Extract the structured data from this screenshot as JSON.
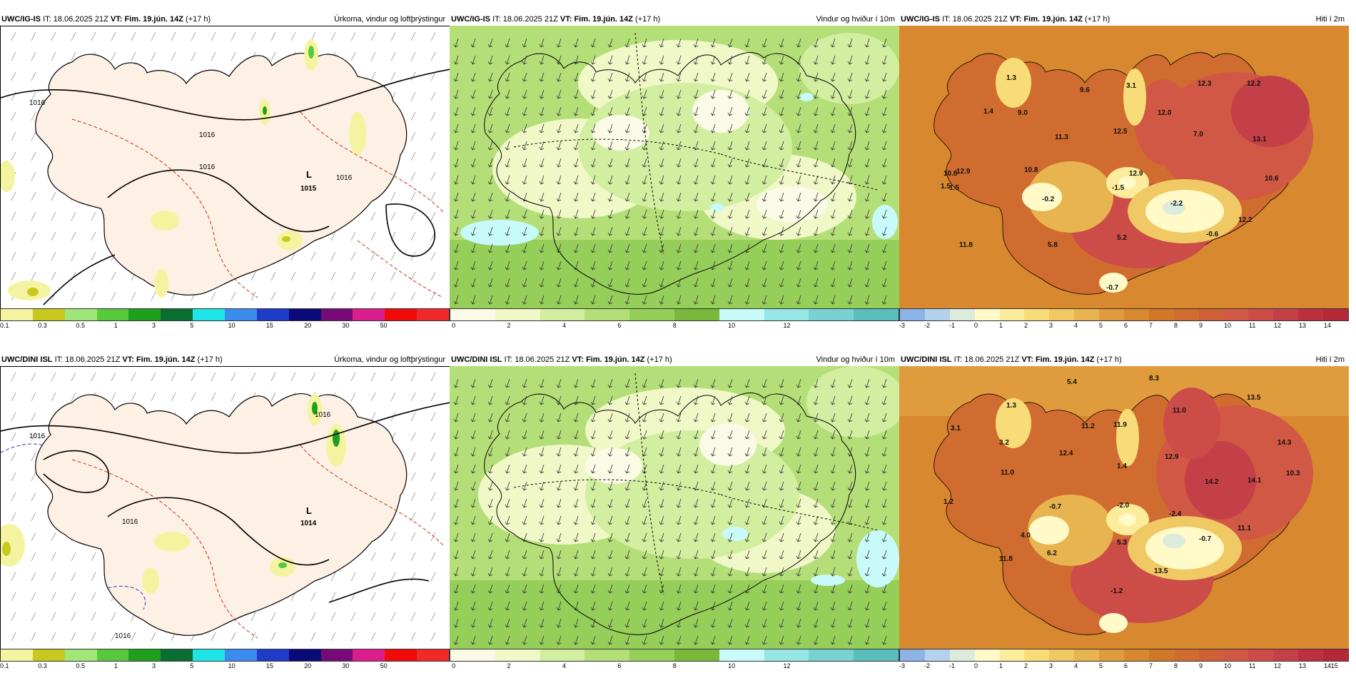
{
  "rows": [
    {
      "model": "UWC/IG-IS",
      "it_label": "IT:",
      "it_value": "18.06.2025 21Z",
      "vt_label": "VT:",
      "vt_value": "Fim. 19.jún. 14Z",
      "lead": "(+17 h)",
      "titles": [
        "Úrkoma, vindur og loftþrýstingur",
        "Vindur og hviður í 10m",
        "Hiti í 2m"
      ],
      "pressure_labels": [
        "1016",
        "1016",
        "1016",
        "1016",
        "L",
        "1015"
      ],
      "temp_labels": [
        "1.3",
        "9.6",
        "3.1",
        "12.3",
        "12.2",
        "1.4",
        "9.0",
        "12.0",
        "11.3",
        "12.5",
        "7.0",
        "13.1",
        "10.8",
        "12.9",
        "1.5",
        "-0.2",
        "-1.5",
        "-2.2",
        "10.6",
        "12.2",
        "-0.6",
        "11.8",
        "5.8",
        "5.2",
        "-0.7"
      ]
    },
    {
      "model": "UWC/DINI ISL",
      "it_label": "IT:",
      "it_value": "18.06.2025 21Z",
      "vt_label": "VT:",
      "vt_value": "Fim. 19.jún. 14Z",
      "lead": "(+17 h)",
      "titles": [
        "Úrkoma, vindur og loftþrýstingur",
        "Vindur og hviður í 10m",
        "Hiti í 2m"
      ],
      "pressure_labels": [
        "1016",
        "1016",
        "1016",
        "1016",
        "L",
        "1014"
      ],
      "temp_labels": [
        "5.4",
        "8.3",
        "1.3",
        "11.0",
        "13.5",
        "3.1",
        "11.2",
        "11.9",
        "3.2",
        "12.4",
        "12.9",
        "14.3",
        "1.4",
        "11.0",
        "14.2",
        "14.1",
        "10.3",
        "1.2",
        "-0.7",
        "-2.0",
        "-2.4",
        "11.1",
        "4.0",
        "5.3",
        "-0.7",
        "6.2",
        "11.8",
        "13.5",
        "-1.2"
      ]
    }
  ],
  "colorbars": {
    "precip": {
      "colors": [
        "#f4f4a0",
        "#c8c81e",
        "#a0e678",
        "#58c83c",
        "#1ea01e",
        "#0a6e32",
        "#1ee6e6",
        "#3c8cf0",
        "#1e3cc8",
        "#0a0a78",
        "#780a78",
        "#dc1e8c",
        "#f00a0a",
        "#f02828"
      ],
      "ticks": [
        "0.1",
        "0.3",
        "0.5",
        "1",
        "3",
        "5",
        "10",
        "15",
        "20",
        "30",
        "50"
      ]
    },
    "wind": {
      "colors": [
        "#fafae6",
        "#f0f8c8",
        "#d2eea0",
        "#b4de78",
        "#96ce5a",
        "#7ab83c",
        "#c8fafa",
        "#96e6e6",
        "#78d2d2",
        "#5abebe"
      ],
      "ticks": [
        "0",
        "2",
        "4",
        "6",
        "8",
        "10",
        "12"
      ]
    },
    "temp": {
      "colors": [
        "#8cb4e6",
        "#b4d2f0",
        "#dcebdc",
        "#fffac8",
        "#fcec9c",
        "#f8dc78",
        "#f0c864",
        "#e8b450",
        "#e09c3c",
        "#d8882e",
        "#d07828",
        "#d06c30",
        "#d06038",
        "#d05844",
        "#cc4c48",
        "#c44048",
        "#bc3040",
        "#b42838"
      ],
      "ticks_row1": [
        "-3",
        "-2",
        "-1",
        "0",
        "1",
        "2",
        "3",
        "4",
        "5",
        "6",
        "7",
        "8",
        "9",
        "10",
        "11",
        "12",
        "13",
        "14"
      ],
      "ticks_row2": [
        "-3",
        "-2",
        "-1",
        "0",
        "1",
        "2",
        "3",
        "4",
        "5",
        "6",
        "7",
        "8",
        "9",
        "10",
        "11",
        "12",
        "13",
        "14",
        "15"
      ]
    }
  }
}
